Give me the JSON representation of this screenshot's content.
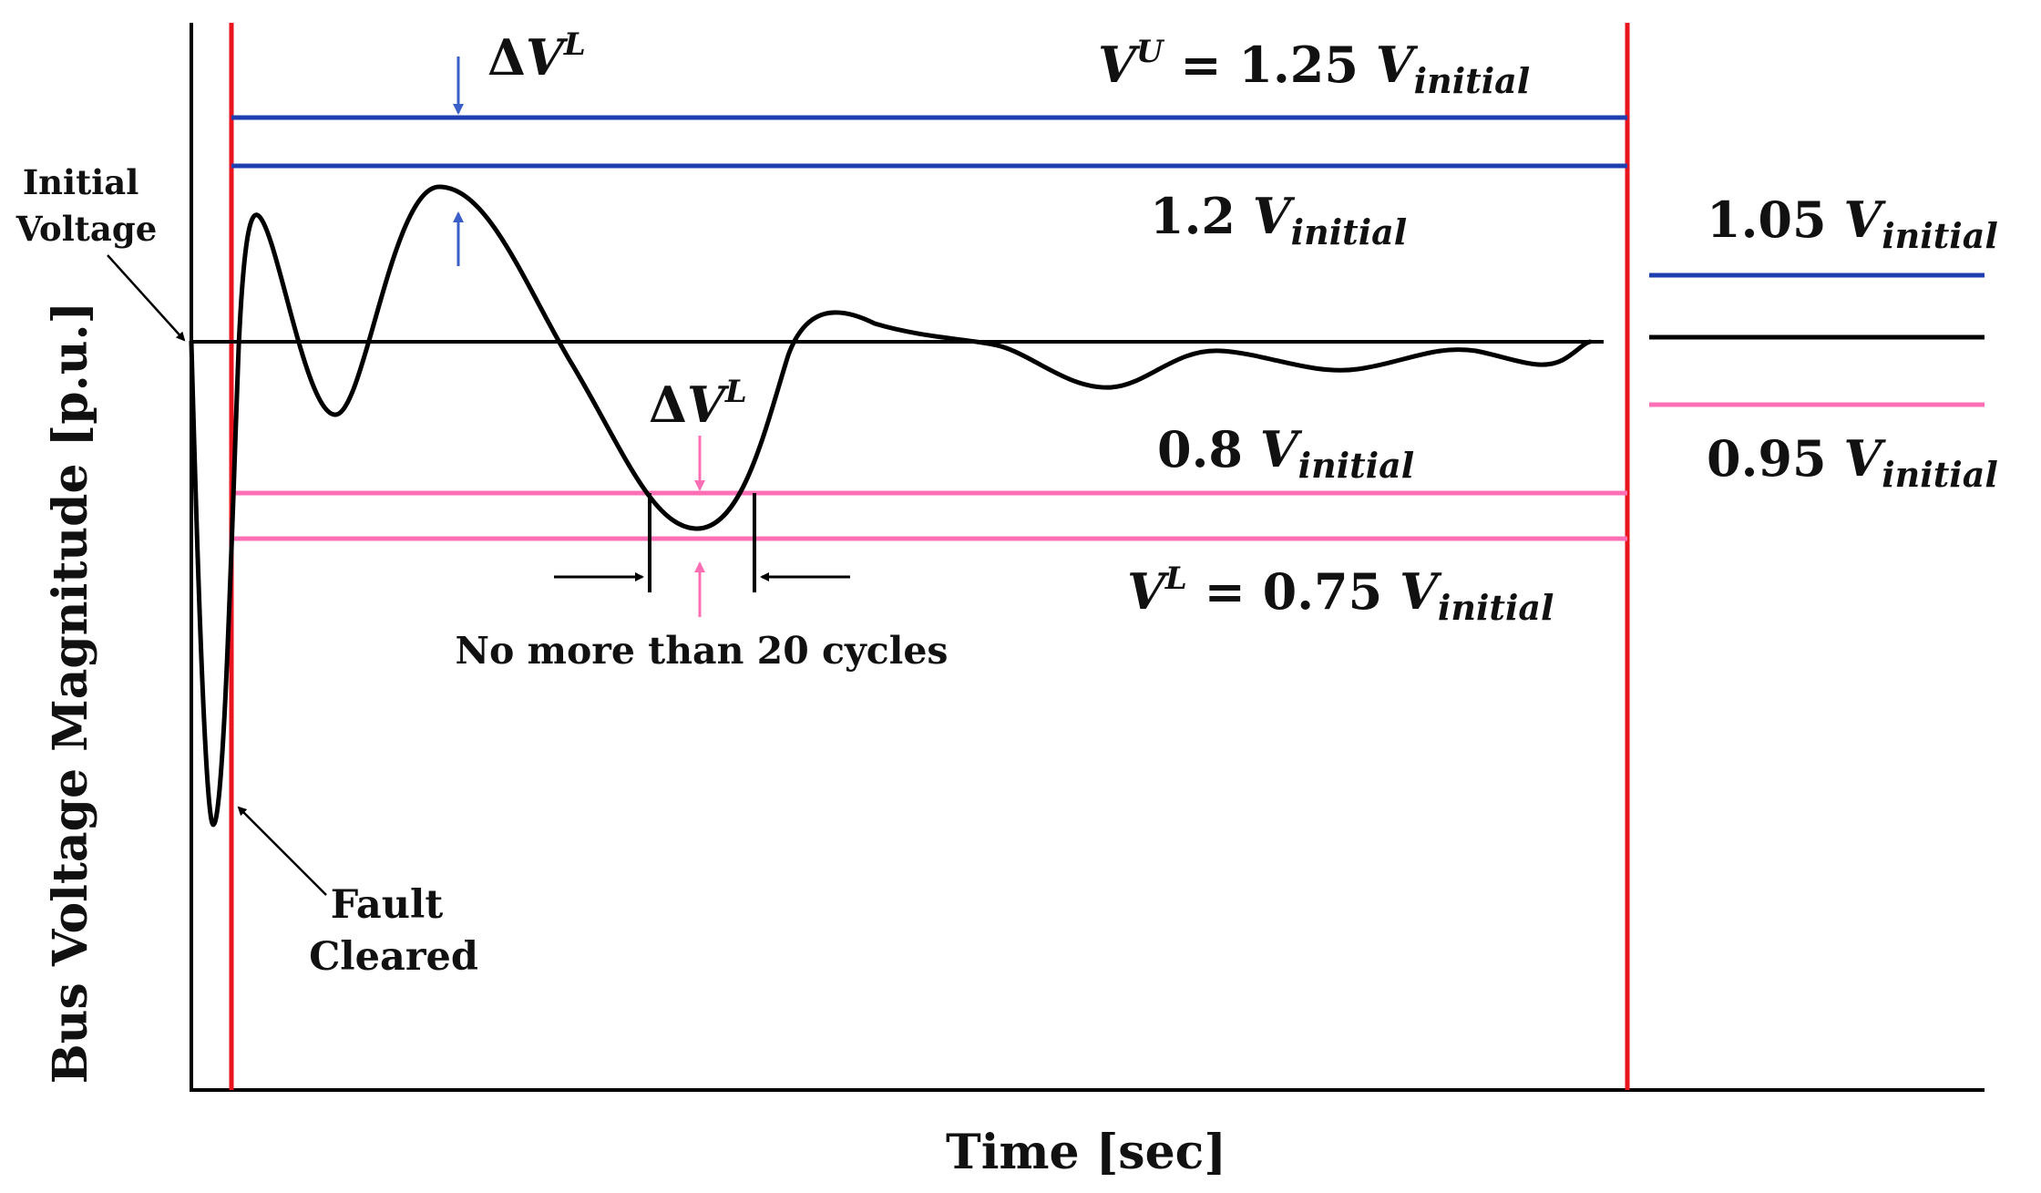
{
  "figure": {
    "y_axis_label": "Bus Voltage Magnitude [p.u.]",
    "x_axis_label": "Time [sec]",
    "initial_voltage_label": [
      "Initial",
      "Voltage"
    ],
    "fault_cleared_label": [
      "Fault",
      "Cleared"
    ],
    "duration_label": "No more than 20 cycles"
  },
  "upper_limit": {
    "lhs": "V",
    "sup": "U",
    "eq": " = 1.25 ",
    "var": "V",
    "sub": "initial"
  },
  "upper_threshold": {
    "coef": "1.2 ",
    "var": "V",
    "sub": "initial"
  },
  "lower_threshold": {
    "coef": "0.8 ",
    "var": "V",
    "sub": "initial"
  },
  "lower_limit": {
    "lhs": "V",
    "sup": "L",
    "eq": " = 0.75 ",
    "var": "V",
    "sub": "initial"
  },
  "steady_upper": {
    "coef": "1.05 ",
    "var": "V",
    "sub": "initial"
  },
  "steady_lower": {
    "coef": "0.95 ",
    "var": "V",
    "sub": "initial"
  },
  "delta_top": {
    "delta": "Δ",
    "var": "V",
    "sup": "L"
  },
  "delta_bottom": {
    "delta": "Δ",
    "var": "V",
    "sup": "L"
  },
  "colors": {
    "upper_band": "#1f3fb0",
    "lower_band": "#ff6fb5",
    "boundary": "#e8141e",
    "curve": "#000000"
  }
}
